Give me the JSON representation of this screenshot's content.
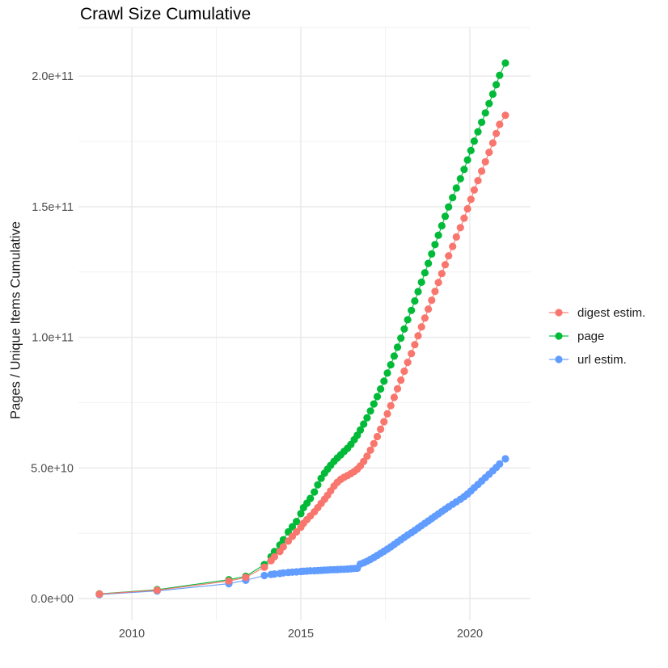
{
  "chart": {
    "title": "Crawl Size Cumulative",
    "y_axis_title": "Pages / Unique Items Cumulative"
  },
  "chart_data": {
    "type": "line",
    "subtype": "scatter-line (dotted cumulative curves)",
    "title": "Crawl Size Cumulative",
    "xlabel": "",
    "ylabel": "Pages / Unique Items Cumulative",
    "grid": true,
    "legend_position": "right",
    "x_ticks": [
      {
        "value": 2010,
        "label": "2010"
      },
      {
        "value": 2015,
        "label": "2015"
      },
      {
        "value": 2020,
        "label": "2020"
      }
    ],
    "y_ticks": [
      {
        "value": 0,
        "label": "0.0e+00"
      },
      {
        "value": 50,
        "label": "5.0e+10"
      },
      {
        "value": 100,
        "label": "1.0e+11"
      },
      {
        "value": 150,
        "label": "1.5e+11"
      },
      {
        "value": 200,
        "label": "2.0e+11"
      }
    ],
    "xlim": [
      2008.4,
      2021.8
    ],
    "ylim_billions": [
      -8,
      218
    ],
    "value_unit": "points are [decimal_year, value_in_billions(1e9)]",
    "series": [
      {
        "name": "digest estim.",
        "color": "#F8766D",
        "points": [
          [
            2009.04,
            1.7
          ],
          [
            2010.75,
            3.2
          ],
          [
            2012.87,
            6.7
          ],
          [
            2013.37,
            8.1
          ],
          [
            2013.92,
            12.0
          ],
          [
            2014.12,
            14.5
          ],
          [
            2014.22,
            16.0
          ],
          [
            2014.38,
            18.0
          ],
          [
            2014.48,
            19.8
          ],
          [
            2014.63,
            22.0
          ],
          [
            2014.75,
            23.8
          ],
          [
            2014.87,
            25.5
          ],
          [
            2015.0,
            27.3
          ],
          [
            2015.08,
            28.8
          ],
          [
            2015.18,
            30.2
          ],
          [
            2015.28,
            31.6
          ],
          [
            2015.4,
            33.2
          ],
          [
            2015.5,
            34.8
          ],
          [
            2015.6,
            36.4
          ],
          [
            2015.7,
            38.0
          ],
          [
            2015.79,
            39.5
          ],
          [
            2015.88,
            41.2
          ],
          [
            2015.98,
            43.0
          ],
          [
            2016.08,
            44.5
          ],
          [
            2016.18,
            45.6
          ],
          [
            2016.28,
            46.4
          ],
          [
            2016.38,
            47.1
          ],
          [
            2016.48,
            47.8
          ],
          [
            2016.58,
            48.6
          ],
          [
            2016.67,
            49.5
          ],
          [
            2016.76,
            50.8
          ],
          [
            2016.86,
            52.5
          ],
          [
            2016.96,
            54.5
          ],
          [
            2017.06,
            56.8
          ],
          [
            2017.16,
            59.3
          ],
          [
            2017.26,
            62.0
          ],
          [
            2017.36,
            64.8
          ],
          [
            2017.46,
            67.7
          ],
          [
            2017.56,
            70.7
          ],
          [
            2017.66,
            73.8
          ],
          [
            2017.76,
            77.0
          ],
          [
            2017.86,
            80.3
          ],
          [
            2017.96,
            83.6
          ],
          [
            2018.06,
            87.0
          ],
          [
            2018.16,
            90.4
          ],
          [
            2018.27,
            93.8
          ],
          [
            2018.37,
            97.2
          ],
          [
            2018.47,
            100.6
          ],
          [
            2018.57,
            104.0
          ],
          [
            2018.67,
            107.4
          ],
          [
            2018.77,
            110.8
          ],
          [
            2018.87,
            114.2
          ],
          [
            2018.97,
            117.6
          ],
          [
            2019.07,
            121.0
          ],
          [
            2019.17,
            124.4
          ],
          [
            2019.27,
            127.8
          ],
          [
            2019.37,
            131.2
          ],
          [
            2019.49,
            134.8
          ],
          [
            2019.6,
            138.4
          ],
          [
            2019.72,
            142.0
          ],
          [
            2019.83,
            145.6
          ],
          [
            2019.93,
            149.2
          ],
          [
            2020.03,
            152.8
          ],
          [
            2020.13,
            156.4
          ],
          [
            2020.24,
            160.0
          ],
          [
            2020.35,
            163.6
          ],
          [
            2020.46,
            167.2
          ],
          [
            2020.57,
            170.8
          ],
          [
            2020.68,
            174.4
          ],
          [
            2020.78,
            178.0
          ],
          [
            2020.88,
            181.5
          ],
          [
            2021.05,
            185.0
          ]
        ]
      },
      {
        "name": "page",
        "color": "#00BA38",
        "points": [
          [
            2009.04,
            1.8
          ],
          [
            2010.75,
            3.4
          ],
          [
            2012.87,
            7.2
          ],
          [
            2013.37,
            8.5
          ],
          [
            2013.92,
            13.0
          ],
          [
            2014.12,
            16.0
          ],
          [
            2014.22,
            18.0
          ],
          [
            2014.38,
            20.5
          ],
          [
            2014.48,
            22.5
          ],
          [
            2014.63,
            25.5
          ],
          [
            2014.75,
            27.5
          ],
          [
            2014.87,
            29.5
          ],
          [
            2015.0,
            32.5
          ],
          [
            2015.08,
            34.8
          ],
          [
            2015.18,
            36.5
          ],
          [
            2015.28,
            38.3
          ],
          [
            2015.4,
            40.8
          ],
          [
            2015.5,
            43.5
          ],
          [
            2015.6,
            46.0
          ],
          [
            2015.7,
            48.0
          ],
          [
            2015.79,
            49.5
          ],
          [
            2015.88,
            51.0
          ],
          [
            2015.98,
            52.5
          ],
          [
            2016.08,
            53.8
          ],
          [
            2016.18,
            55.0
          ],
          [
            2016.28,
            56.3
          ],
          [
            2016.38,
            57.5
          ],
          [
            2016.48,
            59.0
          ],
          [
            2016.58,
            60.8
          ],
          [
            2016.67,
            62.5
          ],
          [
            2016.76,
            64.5
          ],
          [
            2016.86,
            66.8
          ],
          [
            2016.96,
            69.2
          ],
          [
            2017.06,
            71.8
          ],
          [
            2017.16,
            74.5
          ],
          [
            2017.26,
            77.3
          ],
          [
            2017.36,
            80.2
          ],
          [
            2017.46,
            83.2
          ],
          [
            2017.56,
            86.3
          ],
          [
            2017.66,
            89.5
          ],
          [
            2017.76,
            92.8
          ],
          [
            2017.86,
            96.2
          ],
          [
            2017.96,
            99.7
          ],
          [
            2018.06,
            103.2
          ],
          [
            2018.16,
            106.7
          ],
          [
            2018.27,
            110.3
          ],
          [
            2018.37,
            113.9
          ],
          [
            2018.47,
            117.5
          ],
          [
            2018.57,
            121.1
          ],
          [
            2018.67,
            124.7
          ],
          [
            2018.77,
            128.3
          ],
          [
            2018.87,
            131.9
          ],
          [
            2018.97,
            135.5
          ],
          [
            2019.07,
            139.1
          ],
          [
            2019.17,
            142.7
          ],
          [
            2019.27,
            146.3
          ],
          [
            2019.37,
            149.9
          ],
          [
            2019.49,
            153.5
          ],
          [
            2019.6,
            157.1
          ],
          [
            2019.72,
            160.7
          ],
          [
            2019.83,
            164.3
          ],
          [
            2019.93,
            167.9
          ],
          [
            2020.03,
            171.5
          ],
          [
            2020.13,
            175.1
          ],
          [
            2020.24,
            178.7
          ],
          [
            2020.35,
            182.3
          ],
          [
            2020.46,
            185.9
          ],
          [
            2020.57,
            189.5
          ],
          [
            2020.68,
            193.1
          ],
          [
            2020.78,
            196.7
          ],
          [
            2020.88,
            200.3
          ],
          [
            2021.05,
            205.0
          ]
        ]
      },
      {
        "name": "url estim.",
        "color": "#619CFF",
        "points": [
          [
            2009.04,
            1.5
          ],
          [
            2010.75,
            2.9
          ],
          [
            2012.87,
            5.7
          ],
          [
            2013.37,
            7.0
          ],
          [
            2013.92,
            8.8
          ],
          [
            2014.12,
            9.2
          ],
          [
            2014.22,
            9.4
          ],
          [
            2014.38,
            9.6
          ],
          [
            2014.48,
            9.8
          ],
          [
            2014.63,
            10.0
          ],
          [
            2014.75,
            10.1
          ],
          [
            2014.87,
            10.2
          ],
          [
            2015.0,
            10.35
          ],
          [
            2015.08,
            10.45
          ],
          [
            2015.18,
            10.5
          ],
          [
            2015.28,
            10.6
          ],
          [
            2015.4,
            10.65
          ],
          [
            2015.5,
            10.7
          ],
          [
            2015.6,
            10.8
          ],
          [
            2015.7,
            10.85
          ],
          [
            2015.79,
            10.9
          ],
          [
            2015.88,
            11.0
          ],
          [
            2015.98,
            11.05
          ],
          [
            2016.08,
            11.1
          ],
          [
            2016.18,
            11.15
          ],
          [
            2016.28,
            11.2
          ],
          [
            2016.38,
            11.3
          ],
          [
            2016.48,
            11.4
          ],
          [
            2016.58,
            11.5
          ],
          [
            2016.67,
            11.6
          ],
          [
            2016.76,
            13.2
          ],
          [
            2016.86,
            13.7
          ],
          [
            2016.96,
            14.3
          ],
          [
            2017.06,
            15.0
          ],
          [
            2017.16,
            15.7
          ],
          [
            2017.26,
            16.5
          ],
          [
            2017.36,
            17.3
          ],
          [
            2017.46,
            18.1
          ],
          [
            2017.56,
            18.9
          ],
          [
            2017.66,
            19.8
          ],
          [
            2017.76,
            20.7
          ],
          [
            2017.86,
            21.6
          ],
          [
            2017.96,
            22.5
          ],
          [
            2018.06,
            23.4
          ],
          [
            2018.16,
            24.3
          ],
          [
            2018.27,
            25.2
          ],
          [
            2018.37,
            26.1
          ],
          [
            2018.47,
            27.0
          ],
          [
            2018.57,
            27.9
          ],
          [
            2018.67,
            28.8
          ],
          [
            2018.77,
            29.7
          ],
          [
            2018.87,
            30.6
          ],
          [
            2018.97,
            31.5
          ],
          [
            2019.07,
            32.4
          ],
          [
            2019.17,
            33.3
          ],
          [
            2019.27,
            34.2
          ],
          [
            2019.37,
            35.1
          ],
          [
            2019.49,
            36.1
          ],
          [
            2019.6,
            37.0
          ],
          [
            2019.72,
            38.0
          ],
          [
            2019.83,
            39.0
          ],
          [
            2019.93,
            40.0
          ],
          [
            2020.03,
            41.2
          ],
          [
            2020.13,
            42.4
          ],
          [
            2020.24,
            43.7
          ],
          [
            2020.35,
            45.0
          ],
          [
            2020.46,
            46.3
          ],
          [
            2020.57,
            47.6
          ],
          [
            2020.68,
            48.9
          ],
          [
            2020.78,
            50.2
          ],
          [
            2020.88,
            51.5
          ],
          [
            2021.05,
            53.5
          ]
        ]
      }
    ],
    "style": {
      "grid_major_color": "#e8e8e8",
      "grid_minor_color": "#f0f0f0",
      "tick_label_color": "#4d4d4d",
      "point_radius_px": 4.6
    }
  }
}
